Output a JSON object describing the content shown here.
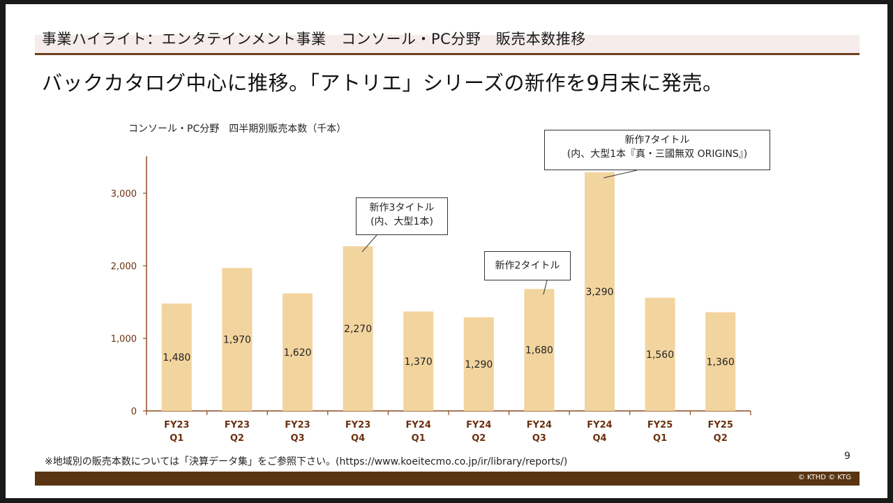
{
  "header": {
    "title": "事業ハイライト：エンタテインメント事業　コンソール・PC分野　販売本数推移"
  },
  "headline": "バックカタログ中心に推移。「アトリエ」シリーズの新作を9月末に発売。",
  "footnote": "※地域別の販売本数については「決算データ集」をご参照下さい。(https://www.koeitecmo.co.jp/ir/library/reports/)",
  "page_number": "9",
  "copyright": "© KTHD © KTG",
  "colors": {
    "bar": "#f2d49e",
    "axis": "#8b4a1e",
    "tick_label": "#6b3010",
    "footer": "#5a3512",
    "header_rule": "#6b3f1e"
  },
  "callouts": [
    {
      "line1": "新作3タイトル",
      "line2": "(内、大型1本)"
    },
    {
      "line1": "新作2タイトル",
      "line2": ""
    },
    {
      "line1": "新作7タイトル",
      "line2": "(内、大型1本『真・三國無双 ORIGINS』)"
    }
  ],
  "chart_data": {
    "type": "bar",
    "title": "コンソール・PC分野　四半期別販売本数（千本）",
    "categories": [
      [
        "FY23",
        "Q1"
      ],
      [
        "FY23",
        "Q2"
      ],
      [
        "FY23",
        "Q3"
      ],
      [
        "FY23",
        "Q4"
      ],
      [
        "FY24",
        "Q1"
      ],
      [
        "FY24",
        "Q2"
      ],
      [
        "FY24",
        "Q3"
      ],
      [
        "FY24",
        "Q4"
      ],
      [
        "FY25",
        "Q1"
      ],
      [
        "FY25",
        "Q2"
      ]
    ],
    "values": [
      1480,
      1970,
      1620,
      2270,
      1370,
      1290,
      1680,
      3290,
      1560,
      1360
    ],
    "value_labels": [
      "1,480",
      "1,970",
      "1,620",
      "2,270",
      "1,370",
      "1,290",
      "1,680",
      "3,290",
      "1,560",
      "1,360"
    ],
    "y_ticks": [
      0,
      1000,
      2000,
      3000
    ],
    "y_tick_labels": [
      "0",
      "1,000",
      "2,000",
      "3,000"
    ],
    "ylim": [
      0,
      3500
    ],
    "grid": false,
    "legend": "none"
  }
}
